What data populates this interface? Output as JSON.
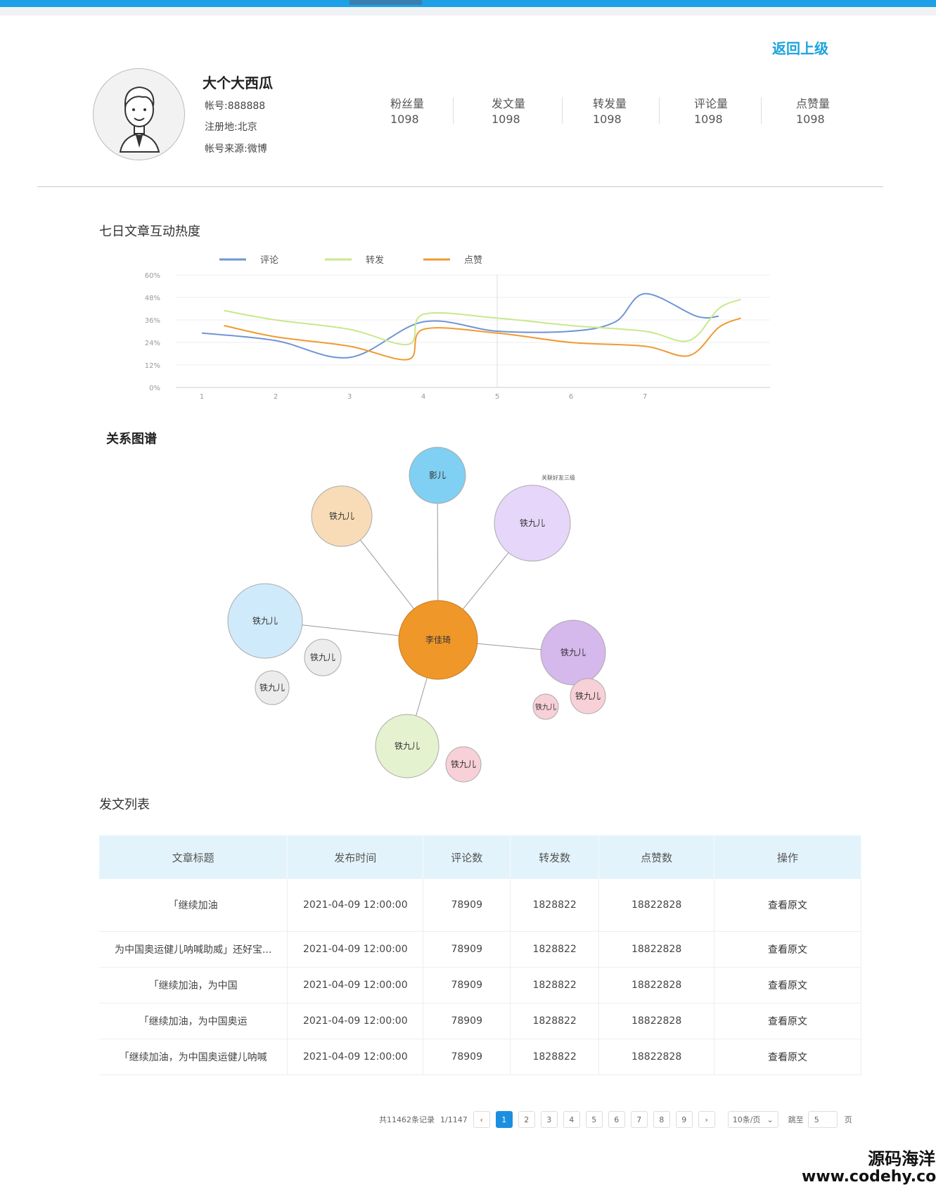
{
  "header": {
    "back_label": "返回上级"
  },
  "profile": {
    "name": "大个大西瓜",
    "account": "帐号:888888",
    "region": "注册地:北京",
    "source": "帐号来源:微博"
  },
  "stats": [
    {
      "label": "粉丝量",
      "value": "1098"
    },
    {
      "label": "发文量",
      "value": "1098"
    },
    {
      "label": "转发量",
      "value": "1098"
    },
    {
      "label": "评论量",
      "value": "1098"
    },
    {
      "label": "点赞量",
      "value": "1098"
    }
  ],
  "sections": {
    "chart_title": "七日文章互动热度",
    "graph_title": "关系图谱",
    "list_title": "发文列表"
  },
  "chart_data": {
    "type": "line",
    "x": [
      1,
      2,
      3,
      4,
      5,
      6,
      7
    ],
    "ylim": [
      0,
      60
    ],
    "yticks": [
      "0%",
      "12%",
      "24%",
      "36%",
      "48%",
      "60%"
    ],
    "grid": true,
    "legend_position": "top",
    "series": [
      {
        "name": "评论",
        "color": "#6f95d6",
        "points": [
          [
            1,
            29
          ],
          [
            2,
            25
          ],
          [
            3,
            16
          ],
          [
            4,
            35
          ],
          [
            5,
            30
          ],
          [
            6,
            30
          ],
          [
            6.6,
            35
          ],
          [
            7,
            50
          ],
          [
            7.7,
            38
          ],
          [
            8,
            38
          ]
        ]
      },
      {
        "name": "转发",
        "color": "#c8e88c",
        "points": [
          [
            1.3,
            41
          ],
          [
            2,
            36
          ],
          [
            3,
            31
          ],
          [
            3.8,
            23
          ],
          [
            4,
            39
          ],
          [
            5,
            37
          ],
          [
            6,
            33
          ],
          [
            7,
            30
          ],
          [
            7.6,
            25
          ],
          [
            8,
            42
          ],
          [
            8.3,
            47
          ]
        ]
      },
      {
        "name": "点赞",
        "color": "#ef9a33",
        "points": [
          [
            1.3,
            33
          ],
          [
            2,
            27
          ],
          [
            3,
            22
          ],
          [
            3.8,
            15
          ],
          [
            4,
            31
          ],
          [
            5,
            29
          ],
          [
            6,
            24
          ],
          [
            7,
            22
          ],
          [
            7.6,
            17
          ],
          [
            8,
            32
          ],
          [
            8.3,
            37
          ]
        ]
      }
    ]
  },
  "graph": {
    "center": {
      "label": "李佳琦",
      "color": "#f0972a"
    },
    "level3_label": "关联好友三级",
    "nodes": [
      {
        "label": "影儿",
        "color": "#7fd0f2"
      },
      {
        "label": "铁九儿",
        "color": "#f8dcb8"
      },
      {
        "label": "铁九儿",
        "color": "#e6d6f9"
      },
      {
        "label": "铁九儿",
        "color": "#cfeafb"
      },
      {
        "label": "铁九儿",
        "color": "#d5b8ec"
      },
      {
        "label": "铁九儿",
        "color": "#e4f2cf"
      },
      {
        "label": "铁九儿",
        "color": "#ececec"
      },
      {
        "label": "铁九儿",
        "color": "#ececec"
      },
      {
        "label": "铁九儿",
        "color": "#f8d0d8"
      },
      {
        "label": "铁九儿",
        "color": "#f8d0d8"
      },
      {
        "label": "铁九儿",
        "color": "#f8d0d8"
      }
    ]
  },
  "table": {
    "columns": [
      "文章标题",
      "发布时间",
      "评论数",
      "转发数",
      "点赞数",
      "操作"
    ],
    "rows": [
      {
        "title": "「继续加油",
        "time": "2021-04-09 12:00:00",
        "comments": "78909",
        "reposts": "1828822",
        "likes": "18822828",
        "action": "查看原文"
      },
      {
        "title": "为中国奥运健儿呐喊助威」还好宝...",
        "time": "2021-04-09 12:00:00",
        "comments": "78909",
        "reposts": "1828822",
        "likes": "18822828",
        "action": "查看原文"
      },
      {
        "title": "「继续加油，为中国",
        "time": "2021-04-09 12:00:00",
        "comments": "78909",
        "reposts": "1828822",
        "likes": "18822828",
        "action": "查看原文"
      },
      {
        "title": "「继续加油，为中国奥运",
        "time": "2021-04-09 12:00:00",
        "comments": "78909",
        "reposts": "1828822",
        "likes": "18822828",
        "action": "查看原文"
      },
      {
        "title": "「继续加油，为中国奥运健儿呐喊",
        "time": "2021-04-09 12:00:00",
        "comments": "78909",
        "reposts": "1828822",
        "likes": "18822828",
        "action": "查看原文"
      }
    ]
  },
  "pagination": {
    "total": "共11462条记录",
    "page_of": "1/1147",
    "prev": "‹",
    "pages": [
      "1",
      "2",
      "3",
      "4",
      "5",
      "6",
      "7",
      "8",
      "9"
    ],
    "active_page": "1",
    "next": "›",
    "page_size": "10条/页",
    "jump_label": "跳至",
    "jump_value": "5",
    "page_suffix": "页"
  },
  "watermark": {
    "line1": "源码海洋网",
    "line2": "www.codehy.com"
  }
}
